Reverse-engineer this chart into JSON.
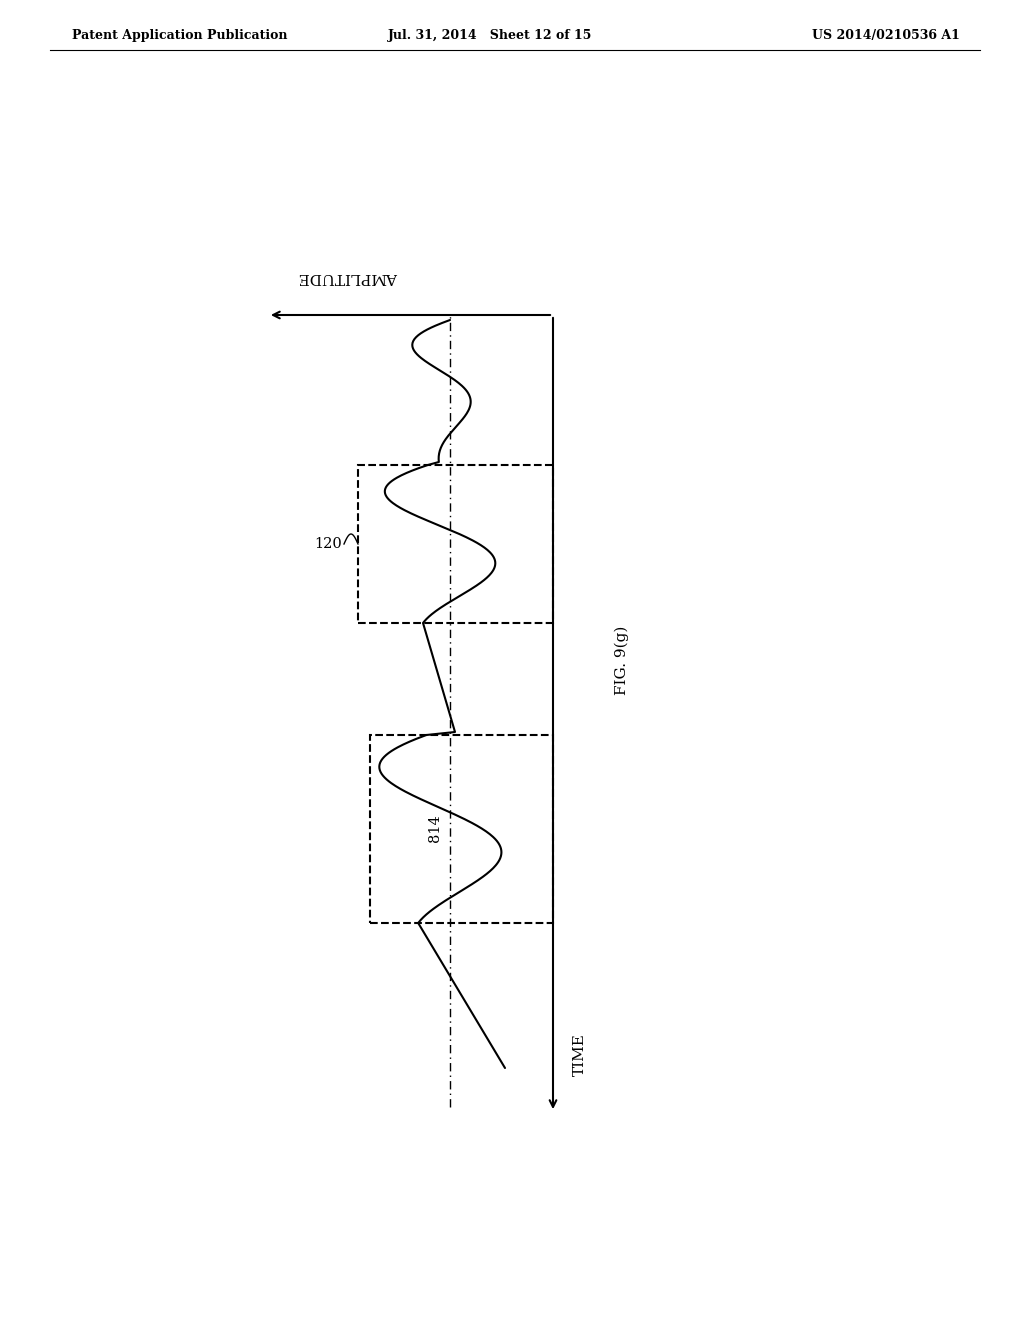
{
  "header_left": "Patent Application Publication",
  "header_center": "Jul. 31, 2014   Sheet 12 of 15",
  "header_right": "US 2014/0210536 A1",
  "fig_label": "FIG. 9(g)",
  "time_label": "TIME",
  "amplitude_label": "AMPLITUDE",
  "label_120": "120",
  "label_814": "814",
  "bg_color": "#ffffff",
  "line_color": "#000000"
}
